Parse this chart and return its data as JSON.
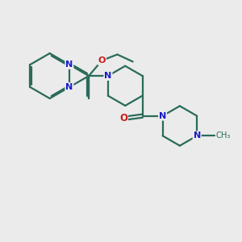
{
  "bg_color": "#ebebeb",
  "bond_color": "#2a6b5a",
  "n_color": "#1a1acc",
  "o_color": "#cc1a1a",
  "line_width": 1.6,
  "dbo": 0.055,
  "xlim": [
    0,
    10
  ],
  "ylim": [
    0,
    10
  ]
}
